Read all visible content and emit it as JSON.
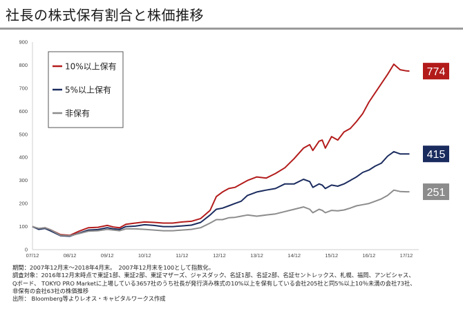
{
  "title": "社長の株式保有割合と株価推移",
  "notes": [
    "期間：2007年12月末～2018年4月末。　2007年12月末を100として指数化。",
    "調査対象：2016年12月末時点で東証1部、東証2部、東証マザーズ、ジャスダック、名証1部、名証2部、名証セントレックス、札幌、福岡、アンビシャス、",
    "Qボード、 TOKYO PRO Marketに上場している3657社のうち社長が発行済み株式の10%以上を保有している会社205社と同5%以上10％未満の会社73社、",
    "非保有の会社63社の株価推移",
    "出所： Bloomberg等よりレオス・キャピタルワークス作成"
  ],
  "colors": {
    "s10": "#b31b1b",
    "s5": "#1a2b5e",
    "none": "#8c8c8c"
  },
  "chart_data": {
    "type": "line",
    "ylim": [
      0,
      900
    ],
    "yticks": [
      0,
      100,
      200,
      300,
      400,
      500,
      600,
      700,
      800,
      900
    ],
    "x_ticks": [
      "07/12",
      "08/12",
      "09/12",
      "10/12",
      "11/12",
      "12/12",
      "13/12",
      "14/12",
      "15/12",
      "16/12",
      "17/12"
    ],
    "grid": false,
    "legend_position": "top-left",
    "series": [
      {
        "name": "10%以上保有",
        "end_label": "774",
        "values": [
          [
            0,
            100
          ],
          [
            2,
            90
          ],
          [
            4,
            95
          ],
          [
            6,
            85
          ],
          [
            9,
            65
          ],
          [
            12,
            62
          ],
          [
            15,
            80
          ],
          [
            18,
            95
          ],
          [
            21,
            97
          ],
          [
            24,
            105
          ],
          [
            26,
            98
          ],
          [
            28,
            95
          ],
          [
            30,
            110
          ],
          [
            33,
            115
          ],
          [
            36,
            120
          ],
          [
            39,
            118
          ],
          [
            42,
            115
          ],
          [
            45,
            115
          ],
          [
            48,
            120
          ],
          [
            51,
            123
          ],
          [
            54,
            135
          ],
          [
            57,
            170
          ],
          [
            59,
            230
          ],
          [
            61,
            250
          ],
          [
            63,
            265
          ],
          [
            65,
            270
          ],
          [
            67,
            285
          ],
          [
            69,
            300
          ],
          [
            72,
            315
          ],
          [
            75,
            310
          ],
          [
            78,
            330
          ],
          [
            81,
            355
          ],
          [
            84,
            395
          ],
          [
            87,
            440
          ],
          [
            89,
            455
          ],
          [
            90,
            430
          ],
          [
            92,
            470
          ],
          [
            93,
            475
          ],
          [
            94,
            440
          ],
          [
            96,
            490
          ],
          [
            98,
            475
          ],
          [
            100,
            510
          ],
          [
            102,
            525
          ],
          [
            104,
            555
          ],
          [
            106,
            590
          ],
          [
            108,
            640
          ],
          [
            110,
            680
          ],
          [
            112,
            720
          ],
          [
            114,
            760
          ],
          [
            116,
            804
          ],
          [
            118,
            780
          ],
          [
            120,
            775
          ],
          [
            121,
            774
          ]
        ]
      },
      {
        "name": "5%以上保有",
        "end_label": "415",
        "values": [
          [
            0,
            100
          ],
          [
            2,
            88
          ],
          [
            4,
            92
          ],
          [
            6,
            80
          ],
          [
            9,
            60
          ],
          [
            12,
            58
          ],
          [
            15,
            72
          ],
          [
            18,
            85
          ],
          [
            21,
            87
          ],
          [
            24,
            95
          ],
          [
            26,
            90
          ],
          [
            28,
            88
          ],
          [
            30,
            100
          ],
          [
            33,
            102
          ],
          [
            36,
            108
          ],
          [
            39,
            105
          ],
          [
            42,
            100
          ],
          [
            45,
            100
          ],
          [
            48,
            103
          ],
          [
            51,
            106
          ],
          [
            54,
            118
          ],
          [
            57,
            150
          ],
          [
            59,
            175
          ],
          [
            61,
            180
          ],
          [
            63,
            190
          ],
          [
            65,
            200
          ],
          [
            67,
            210
          ],
          [
            69,
            235
          ],
          [
            72,
            250
          ],
          [
            75,
            258
          ],
          [
            78,
            265
          ],
          [
            81,
            285
          ],
          [
            84,
            285
          ],
          [
            87,
            305
          ],
          [
            89,
            295
          ],
          [
            90,
            270
          ],
          [
            92,
            285
          ],
          [
            93,
            280
          ],
          [
            94,
            265
          ],
          [
            96,
            280
          ],
          [
            98,
            275
          ],
          [
            100,
            285
          ],
          [
            102,
            300
          ],
          [
            104,
            315
          ],
          [
            106,
            335
          ],
          [
            108,
            345
          ],
          [
            110,
            362
          ],
          [
            112,
            375
          ],
          [
            114,
            405
          ],
          [
            116,
            425
          ],
          [
            118,
            415
          ],
          [
            120,
            415
          ],
          [
            121,
            415
          ]
        ]
      },
      {
        "name": "非保有",
        "end_label": "251",
        "values": [
          [
            0,
            100
          ],
          [
            2,
            92
          ],
          [
            4,
            95
          ],
          [
            6,
            85
          ],
          [
            9,
            62
          ],
          [
            12,
            60
          ],
          [
            15,
            70
          ],
          [
            18,
            80
          ],
          [
            21,
            82
          ],
          [
            24,
            88
          ],
          [
            26,
            85
          ],
          [
            28,
            82
          ],
          [
            30,
            90
          ],
          [
            33,
            90
          ],
          [
            36,
            88
          ],
          [
            39,
            85
          ],
          [
            42,
            82
          ],
          [
            45,
            82
          ],
          [
            48,
            85
          ],
          [
            51,
            88
          ],
          [
            54,
            95
          ],
          [
            57,
            115
          ],
          [
            59,
            130
          ],
          [
            61,
            130
          ],
          [
            63,
            138
          ],
          [
            65,
            140
          ],
          [
            67,
            145
          ],
          [
            69,
            150
          ],
          [
            72,
            145
          ],
          [
            75,
            150
          ],
          [
            78,
            155
          ],
          [
            81,
            165
          ],
          [
            84,
            175
          ],
          [
            87,
            185
          ],
          [
            89,
            175
          ],
          [
            90,
            160
          ],
          [
            92,
            175
          ],
          [
            93,
            170
          ],
          [
            94,
            160
          ],
          [
            96,
            170
          ],
          [
            98,
            168
          ],
          [
            100,
            172
          ],
          [
            102,
            180
          ],
          [
            104,
            190
          ],
          [
            106,
            195
          ],
          [
            108,
            200
          ],
          [
            110,
            210
          ],
          [
            112,
            220
          ],
          [
            114,
            235
          ],
          [
            116,
            258
          ],
          [
            118,
            252
          ],
          [
            120,
            251
          ],
          [
            121,
            251
          ]
        ]
      }
    ]
  }
}
